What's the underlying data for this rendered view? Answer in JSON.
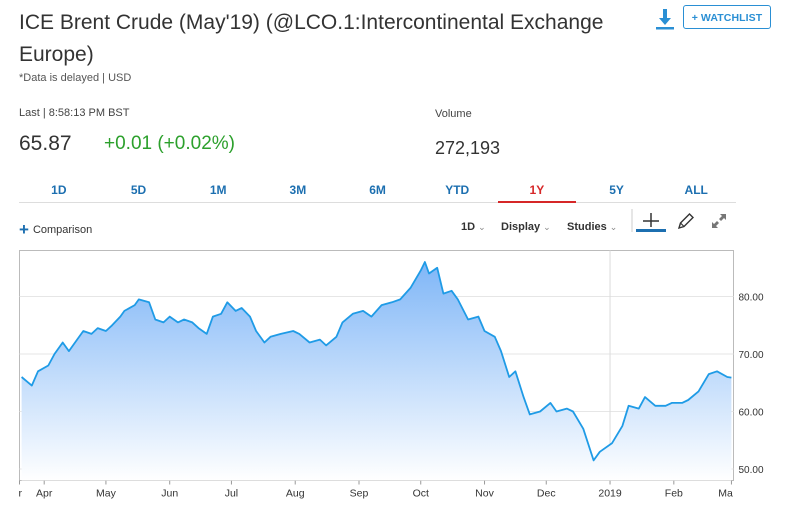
{
  "header": {
    "title": "ICE Brent Crude (May'19) (@LCO.1:Intercontinental Exchange Europe)",
    "delayed_note": "*Data is delayed | USD",
    "watchlist_label": "+ WATCHLIST"
  },
  "quote": {
    "last_label": "Last | 8:58:13 PM BST",
    "price": "65.87",
    "change": "+0.01 (+0.02%)",
    "volume_label": "Volume",
    "volume": "272,193"
  },
  "tabs": [
    "1D",
    "5D",
    "1M",
    "3M",
    "6M",
    "YTD",
    "1Y",
    "5Y",
    "ALL"
  ],
  "active_tab": "1Y",
  "toolbar": {
    "comparison": "Comparison",
    "interval": "1D",
    "display": "Display",
    "studies": "Studies"
  },
  "colors": {
    "line": "#1f9be6",
    "fill_top": "#7fb6f7",
    "fill_bottom": "#ffffff",
    "positive": "#2ca02c",
    "accent": "#2a8fd4",
    "active_tab": "#d62728"
  },
  "icons": {
    "download": "download-icon",
    "crosshair": "crosshair-icon",
    "draw": "pencil-icon",
    "expand": "expand-icon"
  },
  "chart_data": {
    "type": "area",
    "ylim": [
      48,
      88
    ],
    "yticks": [
      50,
      60,
      70,
      80
    ],
    "ytick_labels": [
      "50.00",
      "60.00",
      "70.00",
      "80.00"
    ],
    "xtick_labels": [
      "r",
      "Apr",
      "May",
      "Jun",
      "Jul",
      "Aug",
      "Sep",
      "Oct",
      "Nov",
      "Dec",
      "2019",
      "Feb",
      "Ma"
    ],
    "x": [
      "2018-03-21",
      "2018-03-26",
      "2018-03-29",
      "2018-04-03",
      "2018-04-06",
      "2018-04-10",
      "2018-04-13",
      "2018-04-17",
      "2018-04-20",
      "2018-04-24",
      "2018-04-27",
      "2018-05-01",
      "2018-05-04",
      "2018-05-08",
      "2018-05-10",
      "2018-05-15",
      "2018-05-17",
      "2018-05-22",
      "2018-05-25",
      "2018-05-29",
      "2018-06-01",
      "2018-06-05",
      "2018-06-08",
      "2018-06-12",
      "2018-06-15",
      "2018-06-19",
      "2018-06-22",
      "2018-06-26",
      "2018-06-29",
      "2018-07-03",
      "2018-07-06",
      "2018-07-10",
      "2018-07-13",
      "2018-07-17",
      "2018-07-20",
      "2018-07-25",
      "2018-07-31",
      "2018-08-03",
      "2018-08-08",
      "2018-08-13",
      "2018-08-16",
      "2018-08-21",
      "2018-08-24",
      "2018-08-29",
      "2018-09-03",
      "2018-09-07",
      "2018-09-12",
      "2018-09-17",
      "2018-09-21",
      "2018-09-26",
      "2018-10-01",
      "2018-10-03",
      "2018-10-05",
      "2018-10-09",
      "2018-10-12",
      "2018-10-16",
      "2018-10-19",
      "2018-10-24",
      "2018-10-29",
      "2018-11-01",
      "2018-11-06",
      "2018-11-09",
      "2018-11-13",
      "2018-11-16",
      "2018-11-20",
      "2018-11-23",
      "2018-11-28",
      "2018-12-03",
      "2018-12-06",
      "2018-12-11",
      "2018-12-14",
      "2018-12-19",
      "2018-12-24",
      "2018-12-27",
      "2019-01-02",
      "2019-01-07",
      "2019-01-10",
      "2019-01-15",
      "2019-01-18",
      "2019-01-23",
      "2019-01-28",
      "2019-01-31",
      "2019-02-05",
      "2019-02-08",
      "2019-02-13",
      "2019-02-18",
      "2019-02-22",
      "2019-02-27",
      "2019-03-01"
    ],
    "values": [
      66.0,
      64.5,
      67.0,
      68.0,
      70.0,
      72.0,
      70.5,
      72.5,
      74.0,
      73.5,
      74.5,
      74.0,
      75.0,
      76.5,
      77.5,
      78.5,
      79.5,
      79.0,
      76.0,
      75.5,
      76.5,
      75.5,
      76.0,
      75.5,
      74.5,
      73.5,
      76.5,
      77.0,
      79.0,
      77.5,
      78.0,
      76.5,
      74.0,
      72.0,
      73.0,
      73.5,
      74.0,
      73.5,
      72.0,
      72.5,
      71.5,
      73.0,
      75.5,
      77.0,
      77.5,
      76.5,
      78.5,
      79.0,
      79.5,
      81.5,
      84.5,
      86.0,
      84.0,
      85.0,
      80.5,
      81.0,
      79.5,
      76.0,
      76.5,
      74.0,
      73.0,
      70.5,
      66.0,
      67.0,
      62.5,
      59.5,
      60.0,
      61.5,
      60.0,
      60.5,
      60.0,
      57.0,
      51.5,
      53.0,
      54.5,
      57.5,
      61.0,
      60.5,
      62.5,
      61.0,
      61.0,
      61.5,
      61.5,
      62.0,
      63.5,
      66.5,
      67.0,
      66.0,
      65.9
    ]
  }
}
